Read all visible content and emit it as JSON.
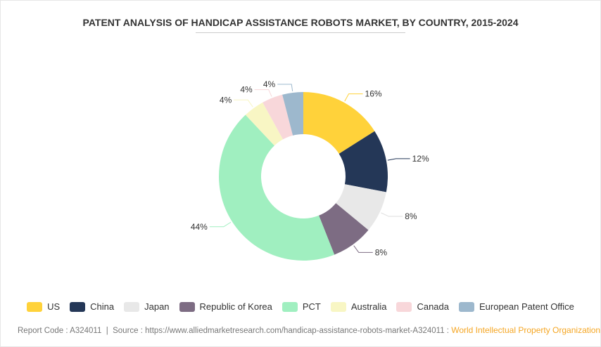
{
  "chart_data": {
    "type": "pie",
    "donut": true,
    "title": "PATENT ANALYSIS OF HANDICAP ASSISTANCE ROBOTS MARKET, BY COUNTRY, 2015-2024",
    "categories": [
      "US",
      "China",
      "Japan",
      "Republic of Korea",
      "PCT",
      "Australia",
      "Canada",
      "European Patent Office"
    ],
    "values": [
      16,
      12,
      8,
      8,
      44,
      4,
      4,
      4
    ],
    "labels": [
      "16%",
      "12%",
      "8%",
      "8%",
      "44%",
      "4%",
      "4%",
      "4%"
    ],
    "colors": [
      "#ffd23a",
      "#243757",
      "#e8e8e8",
      "#7d6c83",
      "#a0efc0",
      "#f8f6c4",
      "#f8d7da",
      "#9db8cd"
    ],
    "legend_position": "bottom"
  },
  "footer": {
    "text": "Report Code : A324011  |  Source : https://www.alliedmarketresearch.com/handicap-assistance-robots-market-A324011 : ",
    "source": "World Intellectual Property Organization"
  }
}
